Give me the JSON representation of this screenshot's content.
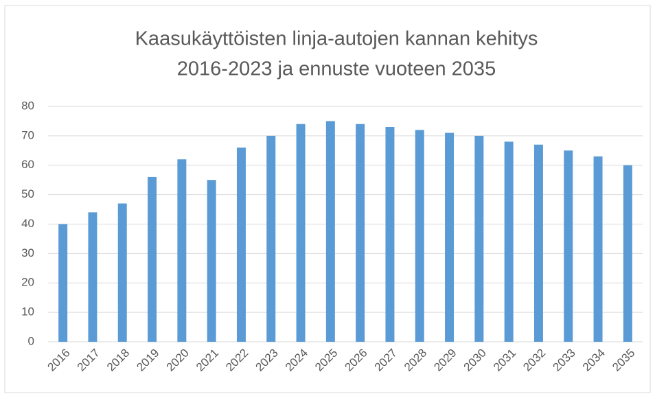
{
  "chart_data": {
    "type": "bar",
    "title": [
      "Kaasukäyttöisten linja-autojen kannan kehitys",
      "2016-2023 ja ennuste vuoteen 2035"
    ],
    "categories": [
      "2016",
      "2017",
      "2018",
      "2019",
      "2020",
      "2021",
      "2022",
      "2023",
      "2024",
      "2025",
      "2026",
      "2027",
      "2028",
      "2029",
      "2030",
      "2031",
      "2032",
      "2033",
      "2034",
      "2035"
    ],
    "values": [
      40,
      44,
      47,
      56,
      62,
      55,
      66,
      70,
      74,
      75,
      74,
      73,
      72,
      71,
      70,
      68,
      67,
      65,
      63,
      60
    ],
    "color": "#5b9bd5",
    "ylim": [
      0,
      80
    ],
    "yticks": [
      0,
      10,
      20,
      30,
      40,
      50,
      60,
      70,
      80
    ],
    "grid": true
  }
}
